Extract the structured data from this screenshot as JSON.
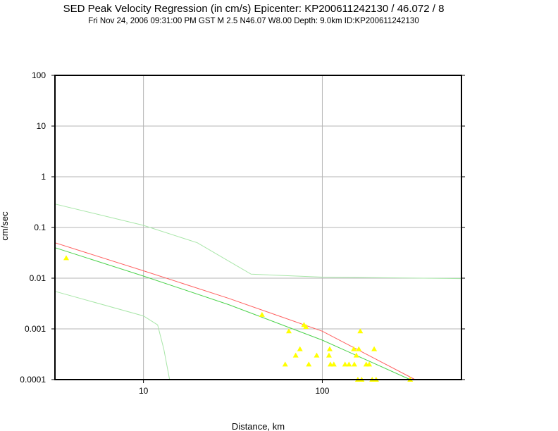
{
  "header": {
    "title": "SED Peak Velocity Regression (in cm/s) Epicenter: KP200611242130 / 46.072 / 8",
    "subtitle": "Fri Nov 24, 2006 09:31:00 PM GST   M 2.5   N46.07 W8.00   Depth: 9.0km   ID:KP200611242130"
  },
  "chart_data": {
    "type": "scatter",
    "xlabel": "Distance, km",
    "ylabel": "cm/sec",
    "xscale": "log",
    "yscale": "log",
    "xlim": [
      3.2,
      600
    ],
    "ylim": [
      0.0001,
      100
    ],
    "grid": true,
    "x_ticks": [
      10,
      100
    ],
    "x_tick_labels": [
      "10",
      "100"
    ],
    "y_ticks": [
      0.0001,
      0.001,
      0.01,
      0.1,
      1,
      10,
      100
    ],
    "y_tick_labels": [
      "0.0001",
      "0.001",
      "0.01",
      "0.1",
      "1",
      "10",
      "100"
    ],
    "colors": {
      "points": "#ffff00",
      "regression_red": "#ff6060",
      "regression_green": "#4cd24c",
      "bounds_green": "#a8e6a8",
      "grid": "#b4b4b4",
      "frame": "#000000"
    },
    "points": [
      {
        "x": 3.7,
        "y": 0.025
      },
      {
        "x": 46,
        "y": 0.0019
      },
      {
        "x": 62,
        "y": 0.0002
      },
      {
        "x": 65,
        "y": 0.0009
      },
      {
        "x": 71,
        "y": 0.0003
      },
      {
        "x": 75,
        "y": 0.0004
      },
      {
        "x": 79,
        "y": 0.0012
      },
      {
        "x": 81,
        "y": 0.0011
      },
      {
        "x": 84,
        "y": 0.0002
      },
      {
        "x": 93,
        "y": 0.0003
      },
      {
        "x": 109,
        "y": 0.0003
      },
      {
        "x": 110,
        "y": 0.0004
      },
      {
        "x": 111,
        "y": 0.0002
      },
      {
        "x": 116,
        "y": 0.0002
      },
      {
        "x": 134,
        "y": 0.0002
      },
      {
        "x": 141,
        "y": 0.0002
      },
      {
        "x": 150,
        "y": 0.0004
      },
      {
        "x": 151,
        "y": 0.0002
      },
      {
        "x": 155,
        "y": 0.0003
      },
      {
        "x": 158,
        "y": 0.0001
      },
      {
        "x": 160,
        "y": 0.0004
      },
      {
        "x": 163,
        "y": 0.0009
      },
      {
        "x": 166,
        "y": 0.0001
      },
      {
        "x": 176,
        "y": 0.0002
      },
      {
        "x": 183,
        "y": 0.0002
      },
      {
        "x": 190,
        "y": 0.0001
      },
      {
        "x": 195,
        "y": 0.0004
      },
      {
        "x": 200,
        "y": 0.0001
      },
      {
        "x": 310,
        "y": 0.0001
      }
    ],
    "series": [
      {
        "color": "#ff6060",
        "x": [
          3.2,
          10,
          30,
          100,
          330
        ],
        "y": [
          0.05,
          0.014,
          0.004,
          0.0009,
          0.0001
        ]
      },
      {
        "color": "#4cd24c",
        "x": [
          3.2,
          10,
          30,
          100,
          310
        ],
        "y": [
          0.04,
          0.011,
          0.003,
          0.0006,
          0.0001
        ]
      },
      {
        "color": "#a8e6a8",
        "x": [
          3.2,
          10,
          20,
          40,
          100,
          600
        ],
        "y": [
          0.29,
          0.11,
          0.05,
          0.012,
          0.0105,
          0.0098
        ]
      },
      {
        "color": "#a8e6a8",
        "x": [
          3.2,
          10,
          12,
          13,
          14
        ],
        "y": [
          0.0055,
          0.0018,
          0.0012,
          0.0004,
          0.0001
        ]
      }
    ]
  }
}
